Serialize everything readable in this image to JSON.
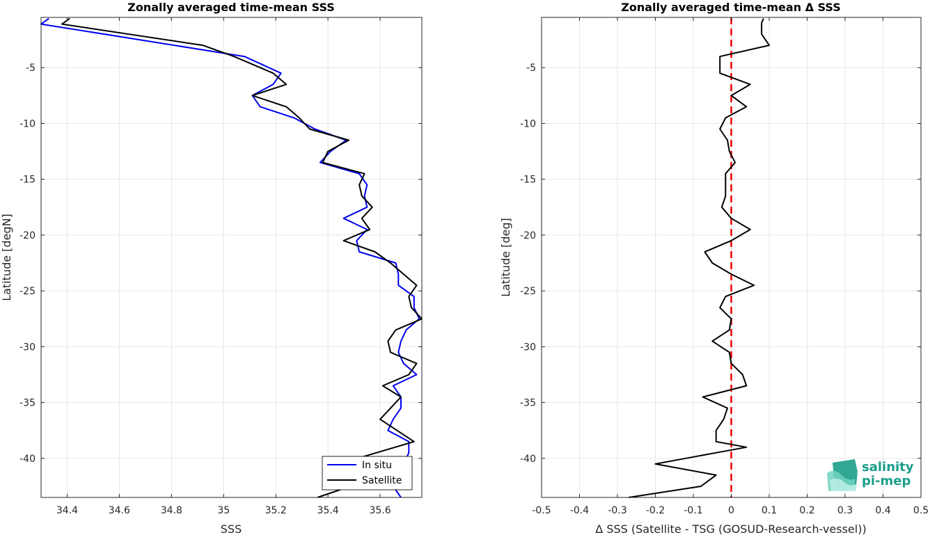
{
  "chart_data": [
    {
      "type": "line",
      "title": "Zonally averaged time-mean SSS",
      "xlabel": "SSS",
      "ylabel": "Latitude [degN]",
      "xlim": [
        34.3,
        35.76
      ],
      "ylim": [
        -43.5,
        -0.5
      ],
      "xticks": [
        34.4,
        34.6,
        34.8,
        35,
        35.2,
        35.4,
        35.6
      ],
      "xtick_labels": [
        "34.4",
        "34.6",
        "34.8",
        "35",
        "35.2",
        "35.4",
        "35.6"
      ],
      "yticks": [
        -5,
        -10,
        -15,
        -20,
        -25,
        -30,
        -35,
        -40
      ],
      "ytick_labels": [
        "-5",
        "-10",
        "-15",
        "-20",
        "-25",
        "-30",
        "-35",
        "-40"
      ],
      "grid": true,
      "legend_position": "bottom-right",
      "series": [
        {
          "name": "In situ",
          "color": "#0000ee",
          "points": [
            [
              34.33,
              -0.6
            ],
            [
              34.3,
              -1.1
            ],
            [
              35.08,
              -4.0
            ],
            [
              35.22,
              -5.5
            ],
            [
              35.19,
              -6.5
            ],
            [
              35.11,
              -7.5
            ],
            [
              35.14,
              -8.5
            ],
            [
              35.27,
              -9.5
            ],
            [
              35.35,
              -10.5
            ],
            [
              35.47,
              -11.5
            ],
            [
              35.41,
              -12.5
            ],
            [
              35.37,
              -13.5
            ],
            [
              35.52,
              -14.5
            ],
            [
              35.55,
              -15.5
            ],
            [
              35.54,
              -16.5
            ],
            [
              35.55,
              -17.5
            ],
            [
              35.46,
              -18.5
            ],
            [
              35.55,
              -19.5
            ],
            [
              35.51,
              -20.5
            ],
            [
              35.52,
              -21.5
            ],
            [
              35.66,
              -22.5
            ],
            [
              35.67,
              -23.5
            ],
            [
              35.67,
              -24.5
            ],
            [
              35.73,
              -25.5
            ],
            [
              35.73,
              -26.5
            ],
            [
              35.75,
              -27.5
            ],
            [
              35.7,
              -28.5
            ],
            [
              35.68,
              -29.5
            ],
            [
              35.67,
              -30.5
            ],
            [
              35.69,
              -31.5
            ],
            [
              35.74,
              -32.5
            ],
            [
              35.65,
              -33.5
            ],
            [
              35.68,
              -34.5
            ],
            [
              35.68,
              -35.5
            ],
            [
              35.65,
              -36.5
            ],
            [
              35.63,
              -37.5
            ],
            [
              35.71,
              -38.5
            ],
            [
              35.71,
              -39.5
            ],
            [
              35.69,
              -40.5
            ],
            [
              35.64,
              -41.5
            ],
            [
              35.65,
              -42.5
            ],
            [
              35.68,
              -43.5
            ]
          ]
        },
        {
          "name": "Satellite",
          "color": "#000000",
          "points": [
            [
              34.41,
              -0.6
            ],
            [
              34.38,
              -1.1
            ],
            [
              34.92,
              -3.0
            ],
            [
              35.04,
              -4.0
            ],
            [
              35.19,
              -5.5
            ],
            [
              35.24,
              -6.5
            ],
            [
              35.11,
              -7.5
            ],
            [
              35.24,
              -8.5
            ],
            [
              35.29,
              -9.5
            ],
            [
              35.33,
              -10.5
            ],
            [
              35.48,
              -11.5
            ],
            [
              35.4,
              -12.5
            ],
            [
              35.38,
              -13.5
            ],
            [
              35.54,
              -14.5
            ],
            [
              35.52,
              -15.5
            ],
            [
              35.53,
              -16.5
            ],
            [
              35.57,
              -17.5
            ],
            [
              35.53,
              -18.5
            ],
            [
              35.56,
              -19.5
            ],
            [
              35.46,
              -20.5
            ],
            [
              35.58,
              -21.5
            ],
            [
              35.64,
              -22.5
            ],
            [
              35.69,
              -23.5
            ],
            [
              35.74,
              -24.5
            ],
            [
              35.71,
              -25.5
            ],
            [
              35.72,
              -26.5
            ],
            [
              35.76,
              -27.5
            ],
            [
              35.66,
              -28.5
            ],
            [
              35.63,
              -29.5
            ],
            [
              35.64,
              -30.5
            ],
            [
              35.74,
              -31.5
            ],
            [
              35.71,
              -32.5
            ],
            [
              35.61,
              -33.5
            ],
            [
              35.68,
              -34.5
            ],
            [
              35.6,
              -36.5
            ],
            [
              35.73,
              -38.5
            ],
            [
              35.44,
              -40.5
            ],
            [
              35.55,
              -42.0
            ],
            [
              35.36,
              -43.5
            ]
          ]
        }
      ]
    },
    {
      "type": "line",
      "title": "Zonally averaged time-mean Δ SSS",
      "xlabel": "Δ SSS (Satellite - TSG (GOSUD-Research-vessel))",
      "ylabel": "Latitude [deg]",
      "xlim": [
        -0.5,
        0.5
      ],
      "ylim": [
        -43.5,
        -0.5
      ],
      "xticks": [
        -0.5,
        -0.4,
        -0.3,
        -0.2,
        -0.1,
        0,
        0.1,
        0.2,
        0.3,
        0.4,
        0.5
      ],
      "xtick_labels": [
        "-0.5",
        "-0.4",
        "-0.3",
        "-0.2",
        "-0.1",
        "0",
        "0.1",
        "0.2",
        "0.3",
        "0.4",
        "0.5"
      ],
      "yticks": [
        -5,
        -10,
        -15,
        -20,
        -25,
        -30,
        -35,
        -40
      ],
      "ytick_labels": [
        "-5",
        "-10",
        "-15",
        "-20",
        "-25",
        "-30",
        "-35",
        "-40"
      ],
      "grid": true,
      "reference_line": {
        "x": 0,
        "color": "#ee0000",
        "style": "dashed"
      },
      "series": [
        {
          "color": "#000000",
          "points": [
            [
              0.085,
              -0.6
            ],
            [
              0.08,
              -1.0
            ],
            [
              0.08,
              -2.0
            ],
            [
              0.1,
              -3.0
            ],
            [
              -0.03,
              -4.0
            ],
            [
              -0.03,
              -5.0
            ],
            [
              -0.03,
              -5.5
            ],
            [
              0.05,
              -6.5
            ],
            [
              0.0,
              -7.5
            ],
            [
              0.04,
              -8.5
            ],
            [
              -0.015,
              -9.5
            ],
            [
              -0.03,
              -10.5
            ],
            [
              -0.01,
              -11.5
            ],
            [
              -0.005,
              -12.5
            ],
            [
              0.01,
              -13.5
            ],
            [
              -0.015,
              -14.5
            ],
            [
              -0.015,
              -15.5
            ],
            [
              -0.015,
              -16.5
            ],
            [
              -0.025,
              -17.5
            ],
            [
              0.0,
              -18.5
            ],
            [
              0.05,
              -19.5
            ],
            [
              0.0,
              -20.5
            ],
            [
              -0.07,
              -21.5
            ],
            [
              -0.05,
              -22.5
            ],
            [
              0.0,
              -23.5
            ],
            [
              0.06,
              -24.5
            ],
            [
              -0.015,
              -25.5
            ],
            [
              -0.03,
              -26.5
            ],
            [
              0.0,
              -27.5
            ],
            [
              -0.005,
              -28.5
            ],
            [
              -0.05,
              -29.5
            ],
            [
              -0.005,
              -30.5
            ],
            [
              0.0,
              -31.5
            ],
            [
              0.03,
              -32.5
            ],
            [
              0.04,
              -33.5
            ],
            [
              -0.075,
              -34.5
            ],
            [
              -0.01,
              -35.5
            ],
            [
              -0.02,
              -36.5
            ],
            [
              -0.04,
              -37.5
            ],
            [
              -0.04,
              -38.5
            ],
            [
              0.04,
              -39.0
            ],
            [
              -0.12,
              -40.0
            ],
            [
              -0.2,
              -40.5
            ],
            [
              -0.04,
              -41.5
            ],
            [
              -0.08,
              -42.5
            ],
            [
              -0.27,
              -43.5
            ]
          ]
        }
      ]
    }
  ],
  "legend": {
    "items": [
      {
        "label": "In situ",
        "color": "#0000ee"
      },
      {
        "label": "Satellite",
        "color": "#000000"
      }
    ]
  },
  "logo": {
    "line1": "salinity",
    "line2": "pi-mep"
  }
}
